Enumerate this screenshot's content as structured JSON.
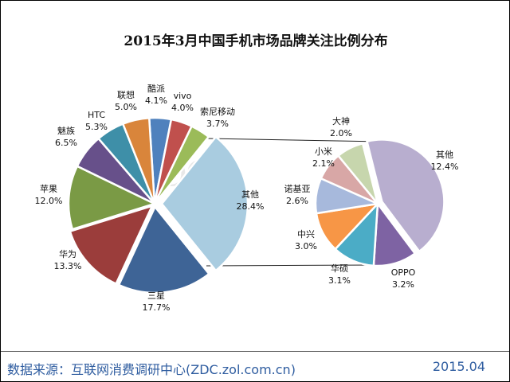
{
  "chart_data": {
    "type": "pie",
    "subtype": "pie-of-pie",
    "title": "2015年3月中国手机市场品牌关注比例分布",
    "primary": [
      {
        "label": "酷派",
        "value": 4.1,
        "text": "4.1%",
        "color": "#4f81bd"
      },
      {
        "label": "vivo",
        "value": 4.0,
        "text": "4.0%",
        "color": "#c0504d"
      },
      {
        "label": "索尼移动",
        "value": 3.7,
        "text": "3.7%",
        "color": "#9bbb59"
      },
      {
        "label": "其他",
        "value": 28.4,
        "text": "28.4%",
        "color": "#a9cce0"
      },
      {
        "label": "三星",
        "value": 17.7,
        "text": "17.7%",
        "color": "#3e6496"
      },
      {
        "label": "华为",
        "value": 13.3,
        "text": "13.3%",
        "color": "#9b3d3b"
      },
      {
        "label": "苹果",
        "value": 12.0,
        "text": "12.0%",
        "color": "#7a9a45"
      },
      {
        "label": "魅族",
        "value": 6.5,
        "text": "6.5%",
        "color": "#67508a"
      },
      {
        "label": "HTC",
        "value": 5.3,
        "text": "5.3%",
        "color": "#3e8fa8"
      },
      {
        "label": "联想",
        "value": 5.0,
        "text": "5.0%",
        "color": "#d9853b"
      }
    ],
    "secondary": [
      {
        "label": "其他",
        "value": 12.4,
        "text": "12.4%",
        "color": "#b8aecf"
      },
      {
        "label": "OPPO",
        "value": 3.2,
        "text": "3.2%",
        "color": "#7e63a3"
      },
      {
        "label": "华硕",
        "value": 3.1,
        "text": "3.1%",
        "color": "#4bacc6"
      },
      {
        "label": "中兴",
        "value": 3.0,
        "text": "3.0%",
        "color": "#f79646"
      },
      {
        "label": "诺基亚",
        "value": 2.6,
        "text": "2.6%",
        "color": "#a7b9dc"
      },
      {
        "label": "小米",
        "value": 2.1,
        "text": "2.1%",
        "color": "#d8a7a6"
      },
      {
        "label": "大神",
        "value": 2.0,
        "text": "2.0%",
        "color": "#c7d6ad"
      }
    ],
    "legend": "none"
  },
  "watermark": "ZDC 互联网消费调研中心 zdc.zol.com.cn",
  "footer": {
    "source": "数据来源：互联网消费调研中心(ZDC.zol.com.cn)",
    "date": "2015.04"
  }
}
